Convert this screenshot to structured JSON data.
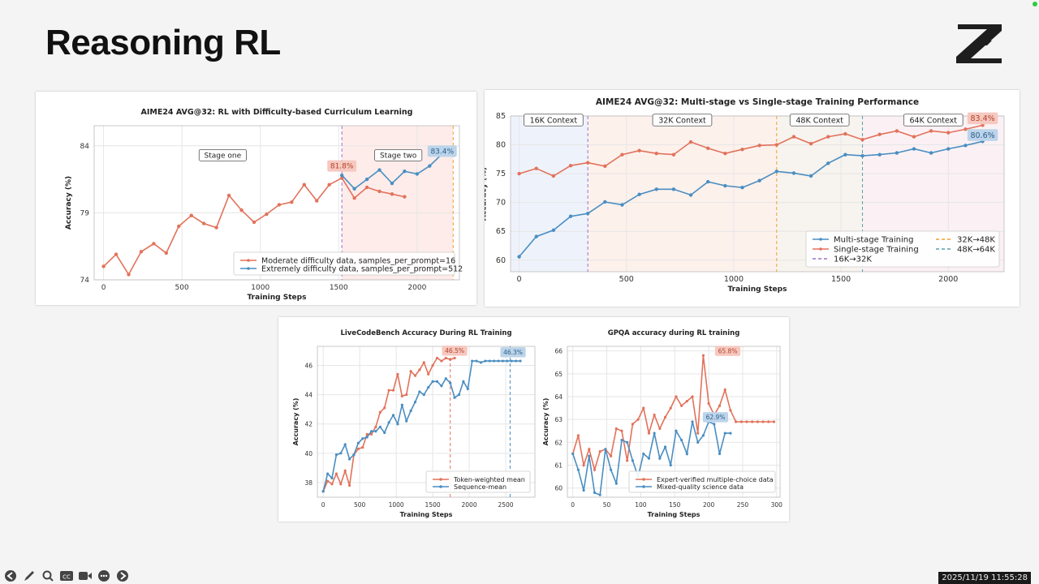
{
  "slide": {
    "title": "Reasoning RL",
    "timestamp": "2025/11/19 11:55:28"
  },
  "icons": [
    "arrow-left-icon",
    "pen-icon",
    "search-icon",
    "captions-icon",
    "camera-icon",
    "more-icon",
    "arrow-right-icon"
  ],
  "colors": {
    "red": "#e2725b",
    "blue": "#4a8ec2",
    "purple": "#9b72c8",
    "orange": "#f0a030",
    "teal": "#5aa0a8"
  },
  "chart_data": [
    {
      "id": "c1",
      "type": "line",
      "title": "AIME24 AVG@32: RL with Difficulty-based Curriculum Learning",
      "xlabel": "Training Steps",
      "ylabel": "Accuracy (%)",
      "xlim": [
        -60,
        2270
      ],
      "ylim": [
        74,
        85.5
      ],
      "xticks": [
        0,
        500,
        1000,
        1500,
        2000
      ],
      "yticks": [
        74,
        79,
        84
      ],
      "legend_position": "lower-right",
      "series": [
        {
          "name": "Moderate difficulty data, samples_per_prompt=16",
          "color": "red",
          "x": [
            0,
            80,
            160,
            240,
            320,
            400,
            480,
            560,
            640,
            720,
            800,
            880,
            960,
            1040,
            1120,
            1200,
            1280,
            1360,
            1440,
            1520,
            1600,
            1680,
            1760,
            1840,
            1920
          ],
          "y": [
            75,
            75.9,
            74.4,
            76.1,
            76.7,
            76,
            78,
            78.8,
            78.2,
            77.9,
            80.3,
            79.2,
            78.3,
            78.9,
            79.6,
            79.8,
            81.1,
            79.9,
            81.1,
            81.6,
            80.1,
            80.9,
            80.6,
            80.4,
            80.2
          ]
        },
        {
          "name": "Extremely difficulty data, samples_per_prompt=512",
          "color": "blue",
          "x": [
            1520,
            1600,
            1680,
            1760,
            1840,
            1920,
            2000,
            2080,
            2160
          ],
          "y": [
            81.8,
            80.8,
            81.5,
            82.2,
            81.2,
            82.1,
            81.9,
            82.5,
            83.4
          ]
        }
      ],
      "vlines": [
        {
          "x": 1520,
          "color": "purple"
        },
        {
          "x": 2230,
          "color": "orange"
        }
      ],
      "shade": [
        {
          "from": 1520,
          "to": 2230,
          "color": "#fdecea"
        }
      ],
      "annotations": [
        {
          "text": "Stage one",
          "x": 760,
          "y": 83.3,
          "style": "box"
        },
        {
          "text": "Stage two",
          "x": 1880,
          "y": 83.3,
          "style": "box"
        },
        {
          "text": "81.8%",
          "x": 1520,
          "y": 82.5,
          "style": "red"
        },
        {
          "text": "83.4%",
          "x": 2160,
          "y": 83.6,
          "style": "blue"
        }
      ]
    },
    {
      "id": "c2",
      "type": "line",
      "title": "AIME24 AVG@32: Multi-stage vs Single-stage Training Performance",
      "xlabel": "Training Steps",
      "ylabel": "Accuracy (%)",
      "xlim": [
        -40,
        2260
      ],
      "ylim": [
        58,
        85
      ],
      "xticks": [
        0,
        500,
        1000,
        1500,
        2000
      ],
      "yticks": [
        60,
        65,
        70,
        75,
        80,
        85
      ],
      "legend_position": "lower-right",
      "series": [
        {
          "name": "Multi-stage Training",
          "color": "blue",
          "x": [
            0,
            80,
            160,
            240,
            320,
            400,
            480,
            560,
            640,
            720,
            800,
            880,
            960,
            1040,
            1120,
            1200,
            1280,
            1360,
            1440,
            1520,
            1600,
            1680,
            1760,
            1840,
            1920,
            2000,
            2080,
            2160
          ],
          "y": [
            60.6,
            64.1,
            65.2,
            67.6,
            68.1,
            70.1,
            69.6,
            71.4,
            72.3,
            72.3,
            71.3,
            73.6,
            72.9,
            72.6,
            73.8,
            75.4,
            75.1,
            74.6,
            76.8,
            78.3,
            78.1,
            78.3,
            78.6,
            79.3,
            78.6,
            79.3,
            79.9,
            80.6
          ]
        },
        {
          "name": "Single-stage Training",
          "color": "red",
          "x": [
            0,
            80,
            160,
            240,
            320,
            400,
            480,
            560,
            640,
            720,
            800,
            880,
            960,
            1040,
            1120,
            1200,
            1280,
            1360,
            1440,
            1520,
            1600,
            1680,
            1760,
            1840,
            1920,
            2000,
            2080,
            2160
          ],
          "y": [
            75.0,
            75.9,
            74.6,
            76.4,
            76.9,
            76.3,
            78.3,
            79.0,
            78.5,
            78.3,
            80.5,
            79.4,
            78.5,
            79.2,
            79.9,
            80.0,
            81.4,
            80.2,
            81.4,
            81.9,
            80.9,
            81.8,
            82.4,
            81.4,
            82.4,
            82.1,
            82.7,
            83.4
          ]
        }
      ],
      "legend_extra": [
        {
          "name": "16K→32K",
          "color": "purple",
          "dash": true
        },
        {
          "name": "32K→48K",
          "color": "orange",
          "dash": true
        },
        {
          "name": "48K→64K",
          "color": "teal",
          "dash": true
        }
      ],
      "vlines": [
        {
          "x": 320,
          "color": "purple"
        },
        {
          "x": 1200,
          "color": "orange"
        },
        {
          "x": 1600,
          "color": "teal"
        }
      ],
      "shade": [
        {
          "from": -40,
          "to": 320,
          "color": "#eef3fb"
        },
        {
          "from": 320,
          "to": 1200,
          "color": "#fdf1ec"
        },
        {
          "from": 1200,
          "to": 1600,
          "color": "#f7f3ee"
        },
        {
          "from": 1600,
          "to": 2260,
          "color": "#fbf1f4"
        }
      ],
      "annotations": [
        {
          "text": "16K Context",
          "x": 160,
          "y": 84.3,
          "style": "box"
        },
        {
          "text": "32K Context",
          "x": 760,
          "y": 84.3,
          "style": "box"
        },
        {
          "text": "48K Context",
          "x": 1400,
          "y": 84.3,
          "style": "box"
        },
        {
          "text": "64K Context",
          "x": 1930,
          "y": 84.3,
          "style": "box"
        },
        {
          "text": "83.4%",
          "x": 2160,
          "y": 84.6,
          "style": "red"
        },
        {
          "text": "80.6%",
          "x": 2160,
          "y": 81.7,
          "style": "blue"
        }
      ]
    },
    {
      "id": "c3",
      "type": "line",
      "title": "LiveCodeBench Accuracy During RL Training",
      "xlabel": "Training Steps",
      "ylabel": "Accuracy (%)",
      "xlim": [
        -80,
        2900
      ],
      "ylim": [
        37,
        47.3
      ],
      "xticks": [
        0,
        500,
        1000,
        1500,
        2000,
        2500
      ],
      "yticks": [
        38,
        40,
        42,
        44,
        46
      ],
      "legend_position": "lower-right",
      "series": [
        {
          "name": "Token-weighted mean",
          "color": "red",
          "x": [
            0,
            60,
            120,
            180,
            240,
            300,
            360,
            420,
            480,
            540,
            600,
            660,
            720,
            780,
            840,
            900,
            960,
            1020,
            1080,
            1140,
            1200,
            1260,
            1320,
            1380,
            1440,
            1500,
            1560,
            1620,
            1680,
            1740,
            1800
          ],
          "y": [
            37.4,
            38.1,
            37.9,
            38.6,
            37.9,
            38.8,
            37.8,
            39.9,
            40.3,
            40.4,
            41.3,
            41.3,
            41.8,
            42.8,
            43.1,
            44.3,
            44.3,
            45.4,
            43.9,
            44.0,
            45.6,
            45.3,
            45.7,
            46.2,
            45.4,
            46.0,
            46.5,
            46.3,
            46.5,
            46.4,
            46.5
          ]
        },
        {
          "name": "Sequence-mean",
          "color": "blue",
          "x": [
            0,
            60,
            120,
            180,
            240,
            300,
            360,
            420,
            480,
            540,
            600,
            660,
            720,
            780,
            840,
            900,
            960,
            1020,
            1080,
            1140,
            1200,
            1260,
            1320,
            1380,
            1440,
            1500,
            1560,
            1620,
            1680,
            1740,
            1800,
            1860,
            1920,
            1980,
            2040,
            2100,
            2160,
            2220,
            2280,
            2340,
            2400,
            2460,
            2520,
            2580,
            2640,
            2700
          ],
          "y": [
            37.4,
            38.6,
            38.3,
            39.9,
            40.0,
            40.6,
            39.6,
            39.9,
            40.7,
            41.0,
            41.1,
            41.5,
            41.5,
            41.8,
            41.4,
            42.1,
            42.6,
            42.0,
            43.3,
            42.2,
            42.9,
            43.5,
            44.2,
            44.0,
            44.5,
            44.9,
            44.9,
            44.6,
            45.1,
            44.8,
            43.8,
            44.0,
            44.9,
            44.4,
            46.3,
            46.3,
            46.2,
            46.3,
            46.3,
            46.3,
            46.3,
            46.3,
            46.3,
            46.3,
            46.3,
            46.3
          ]
        }
      ],
      "vlines": [
        {
          "x": 1740,
          "color": "red"
        },
        {
          "x": 2560,
          "color": "blue"
        }
      ],
      "shade": [],
      "annotations": [
        {
          "text": "46.5%",
          "x": 1800,
          "y": 47.0,
          "style": "red"
        },
        {
          "text": "46.3%",
          "x": 2600,
          "y": 46.9,
          "style": "blue"
        }
      ]
    },
    {
      "id": "c4",
      "type": "line",
      "title": "GPQA accuracy during RL training",
      "xlabel": "Training Steps",
      "ylabel": "Accuracy (%)",
      "xlim": [
        -8,
        305
      ],
      "ylim": [
        59.6,
        66.2
      ],
      "xticks": [
        0,
        50,
        100,
        150,
        200,
        250,
        300
      ],
      "yticks": [
        60,
        61,
        62,
        63,
        64,
        65,
        66
      ],
      "legend_position": "lower-right",
      "series": [
        {
          "name": "Expert-verified multiple-choice data",
          "color": "red",
          "x": [
            0,
            8,
            16,
            24,
            32,
            40,
            48,
            56,
            64,
            72,
            80,
            88,
            96,
            104,
            112,
            120,
            128,
            136,
            144,
            152,
            160,
            168,
            176,
            184,
            192,
            200,
            208,
            216,
            224,
            232,
            240,
            248,
            256,
            264,
            272,
            280,
            288,
            296
          ],
          "y": [
            61.5,
            62.3,
            61.0,
            61.7,
            60.8,
            61.6,
            61.7,
            61.4,
            62.6,
            62.5,
            61.2,
            62.8,
            63.0,
            63.5,
            62.4,
            63.2,
            62.6,
            63.1,
            63.5,
            64.0,
            63.6,
            63.8,
            64.0,
            62.4,
            65.8,
            63.7,
            63.2,
            63.6,
            64.3,
            63.4,
            62.9,
            62.9,
            62.9,
            62.9,
            62.9,
            62.9,
            62.9,
            62.9
          ]
        },
        {
          "name": "Mixed-quality science data",
          "color": "blue",
          "x": [
            0,
            8,
            16,
            24,
            32,
            40,
            48,
            56,
            64,
            72,
            80,
            88,
            96,
            104,
            112,
            120,
            128,
            136,
            144,
            152,
            160,
            168,
            176,
            184,
            192,
            200,
            208,
            216,
            224,
            232
          ],
          "y": [
            61.5,
            60.8,
            59.9,
            61.4,
            59.8,
            59.7,
            61.7,
            60.8,
            60.2,
            62.1,
            62.0,
            61.2,
            60.5,
            61.5,
            61.3,
            62.4,
            61.3,
            61.8,
            61.0,
            62.5,
            62.1,
            61.5,
            62.9,
            62.0,
            62.3,
            62.9,
            62.8,
            61.5,
            62.4,
            62.4
          ]
        }
      ],
      "vlines": [],
      "shade": [],
      "annotations": [
        {
          "text": "65.8%",
          "x": 228,
          "y": 66.0,
          "style": "red"
        },
        {
          "text": "62.9%",
          "x": 210,
          "y": 63.1,
          "style": "blue"
        }
      ]
    }
  ]
}
